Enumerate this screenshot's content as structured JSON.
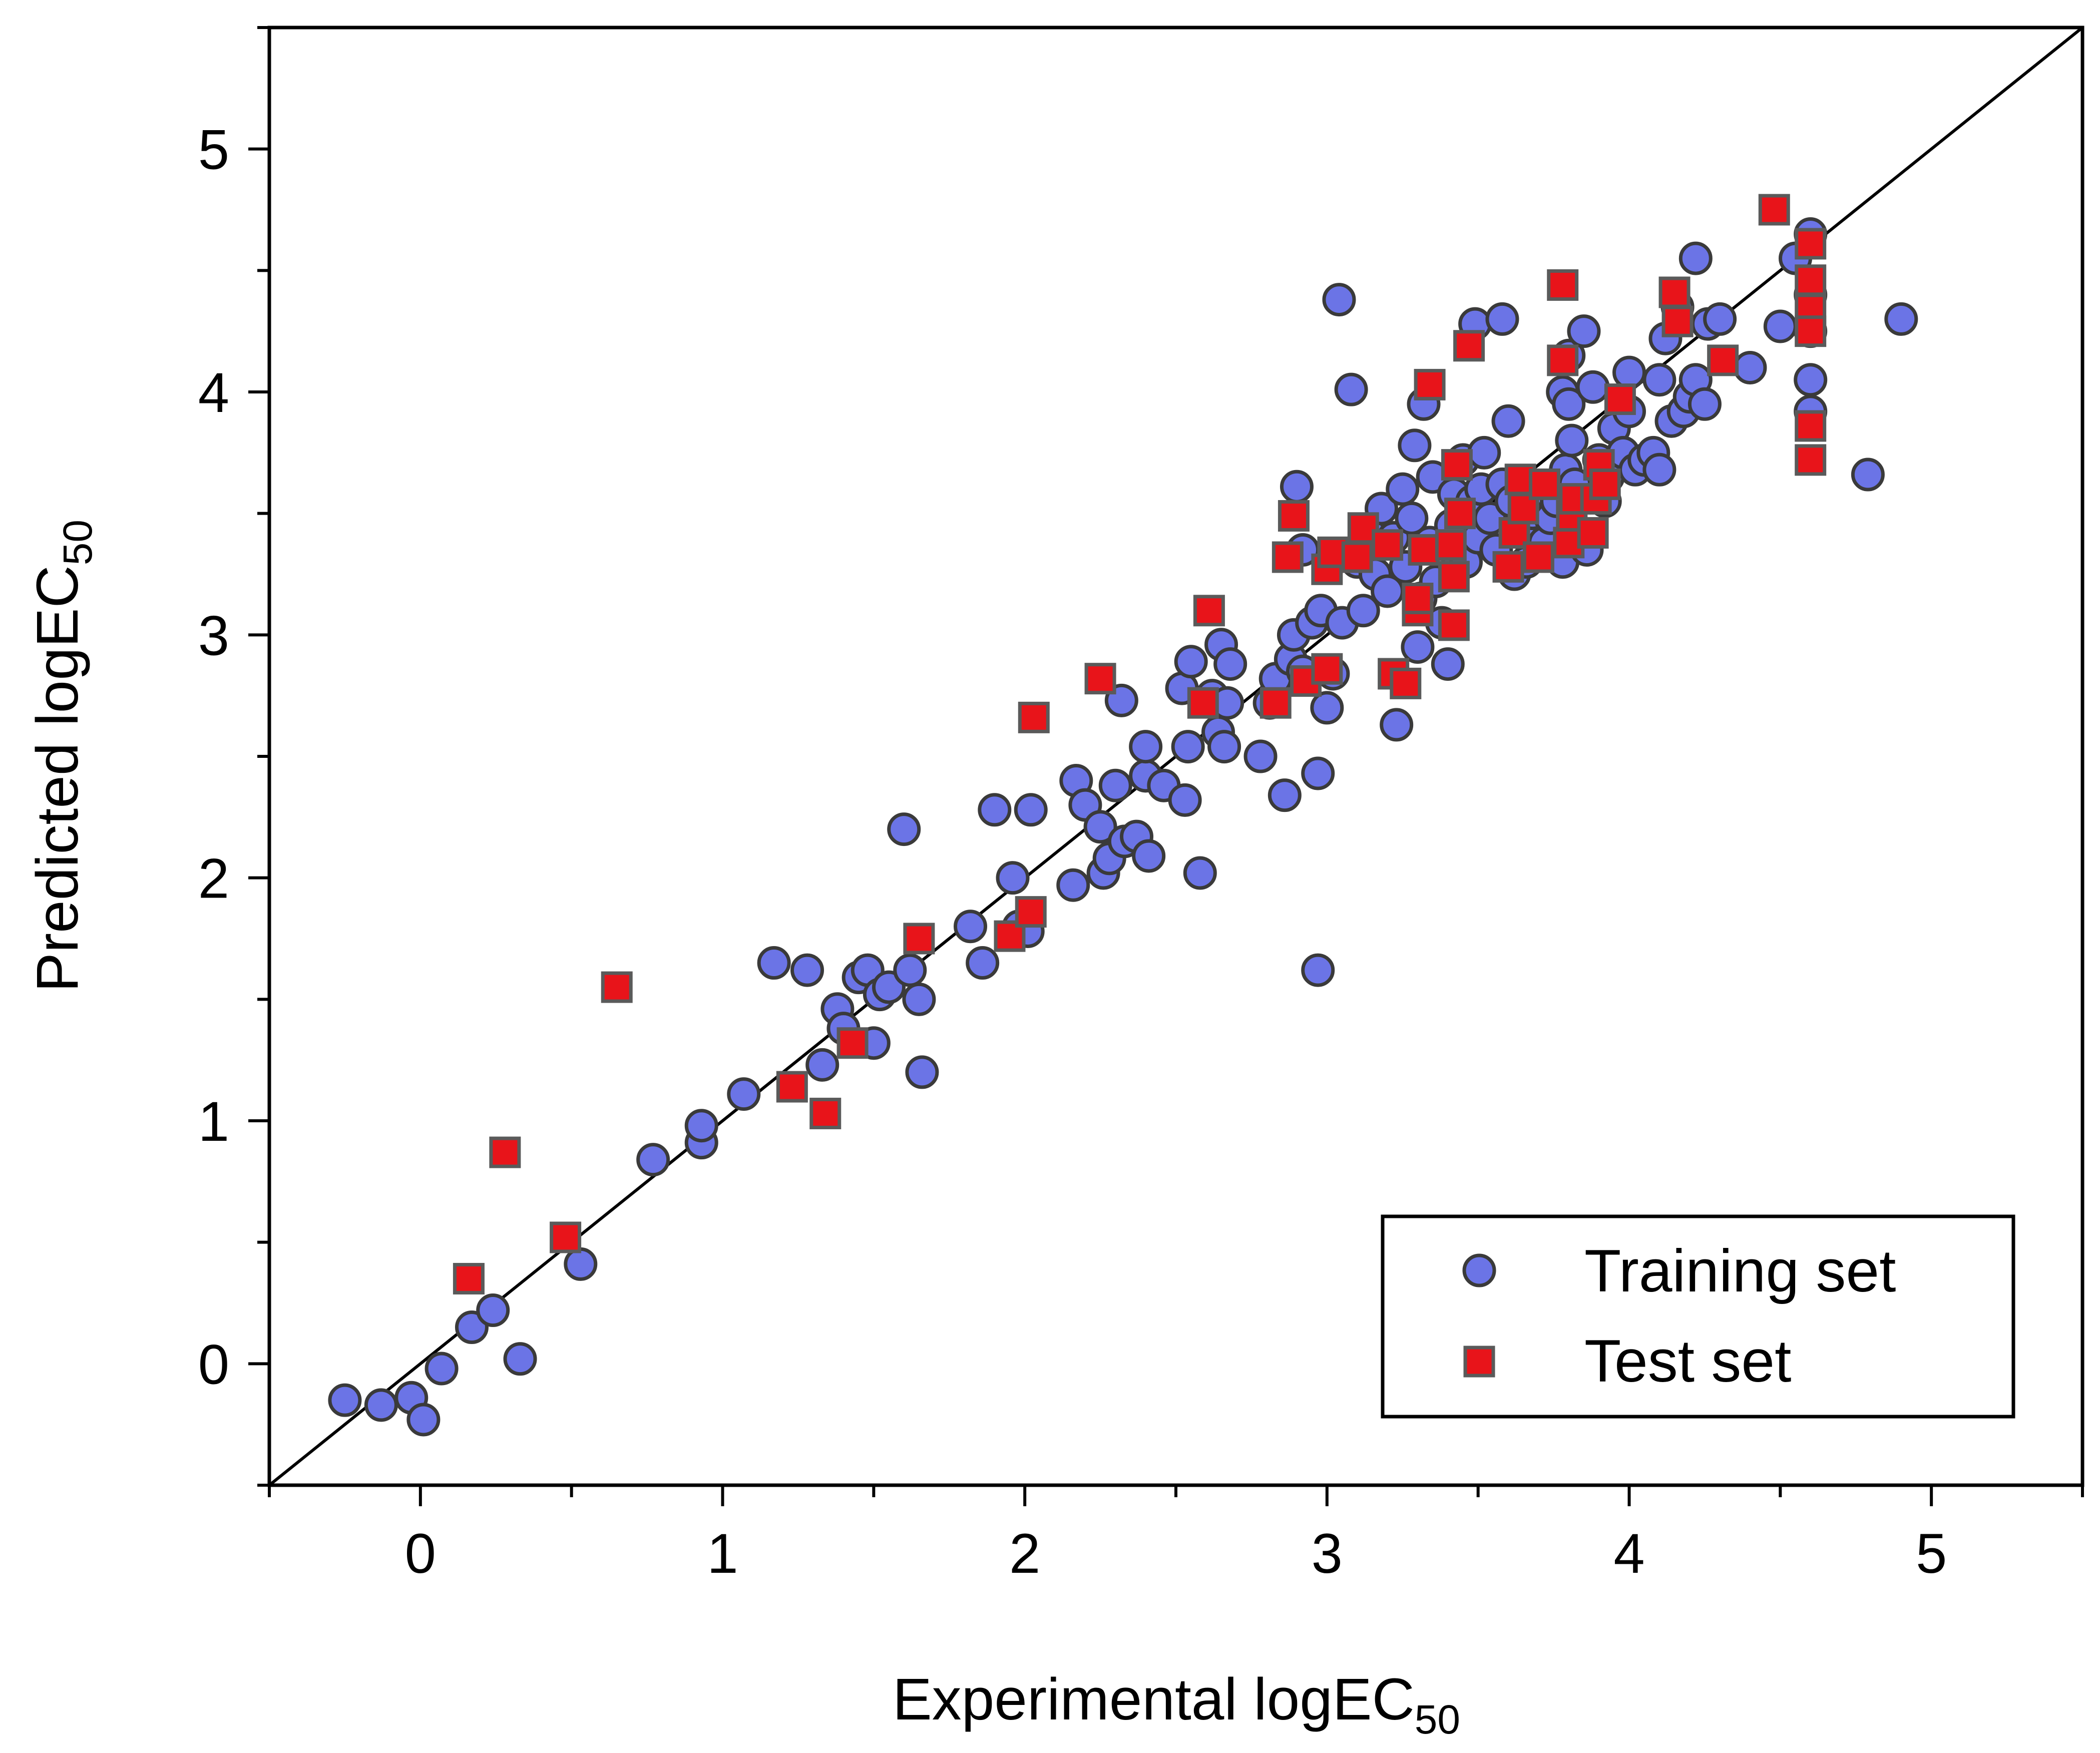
{
  "chart_data": {
    "type": "scatter",
    "title": "",
    "xlabel": "Experimental logEC",
    "xlabel_subscript": "50",
    "ylabel": "Predicted logEC",
    "ylabel_subscript": "50",
    "xlim": [
      -0.5,
      5.5
    ],
    "ylim": [
      -0.5,
      5.5
    ],
    "x_ticks": [
      "0",
      "1",
      "2",
      "3",
      "4",
      "5"
    ],
    "y_ticks": [
      "0",
      "1",
      "2",
      "3",
      "4",
      "5"
    ],
    "grid": false,
    "reference_line": "y = x",
    "legend_position": "bottom-right",
    "series": [
      {
        "name": "Training set",
        "marker": "circle",
        "color": "#6b74e6",
        "edge_color": "#3a3a3a",
        "points": [
          [
            -0.25,
            -0.15
          ],
          [
            -0.13,
            -0.17
          ],
          [
            -0.03,
            -0.14
          ],
          [
            0.01,
            -0.23
          ],
          [
            0.07,
            -0.02
          ],
          [
            0.17,
            0.15
          ],
          [
            0.24,
            0.22
          ],
          [
            0.33,
            0.02
          ],
          [
            0.53,
            0.41
          ],
          [
            0.77,
            0.84
          ],
          [
            0.93,
            0.91
          ],
          [
            0.93,
            0.98
          ],
          [
            1.07,
            1.11
          ],
          [
            1.17,
            1.65
          ],
          [
            1.28,
            1.62
          ],
          [
            1.33,
            1.23
          ],
          [
            1.38,
            1.46
          ],
          [
            1.4,
            1.38
          ],
          [
            1.45,
            1.59
          ],
          [
            1.48,
            1.62
          ],
          [
            1.5,
            1.32
          ],
          [
            1.52,
            1.52
          ],
          [
            1.55,
            1.55
          ],
          [
            1.6,
            2.2
          ],
          [
            1.62,
            1.62
          ],
          [
            1.65,
            1.5
          ],
          [
            1.66,
            1.2
          ],
          [
            1.82,
            1.8
          ],
          [
            1.86,
            1.65
          ],
          [
            1.9,
            2.28
          ],
          [
            1.96,
            2.0
          ],
          [
            1.98,
            1.8
          ],
          [
            2.01,
            1.78
          ],
          [
            2.02,
            2.28
          ],
          [
            2.16,
            1.97
          ],
          [
            2.17,
            2.4
          ],
          [
            2.2,
            2.3
          ],
          [
            2.25,
            2.21
          ],
          [
            2.26,
            2.02
          ],
          [
            2.28,
            2.08
          ],
          [
            2.3,
            2.38
          ],
          [
            2.32,
            2.73
          ],
          [
            2.33,
            2.15
          ],
          [
            2.37,
            2.17
          ],
          [
            2.4,
            2.42
          ],
          [
            2.4,
            2.54
          ],
          [
            2.41,
            2.09
          ],
          [
            2.46,
            2.38
          ],
          [
            2.52,
            2.78
          ],
          [
            2.53,
            2.32
          ],
          [
            2.54,
            2.54
          ],
          [
            2.55,
            2.89
          ],
          [
            2.58,
            2.02
          ],
          [
            2.62,
            2.75
          ],
          [
            2.64,
            2.6
          ],
          [
            2.65,
            2.96
          ],
          [
            2.66,
            2.54
          ],
          [
            2.67,
            2.72
          ],
          [
            2.68,
            2.88
          ],
          [
            2.78,
            2.5
          ],
          [
            2.81,
            2.72
          ],
          [
            2.83,
            2.82
          ],
          [
            2.86,
            2.34
          ],
          [
            2.88,
            2.9
          ],
          [
            2.89,
            3.0
          ],
          [
            2.9,
            3.61
          ],
          [
            2.92,
            3.35
          ],
          [
            2.92,
            2.85
          ],
          [
            2.95,
            3.05
          ],
          [
            2.97,
            2.43
          ],
          [
            2.97,
            1.62
          ],
          [
            2.98,
            3.1
          ],
          [
            3.0,
            2.7
          ],
          [
            3.02,
            2.84
          ],
          [
            3.04,
            4.38
          ],
          [
            3.05,
            3.05
          ],
          [
            3.08,
            4.01
          ],
          [
            3.1,
            3.3
          ],
          [
            3.12,
            3.1
          ],
          [
            3.14,
            3.42
          ],
          [
            3.16,
            3.25
          ],
          [
            3.18,
            3.52
          ],
          [
            3.2,
            3.18
          ],
          [
            3.22,
            3.4
          ],
          [
            3.23,
            2.63
          ],
          [
            3.25,
            3.6
          ],
          [
            3.26,
            3.28
          ],
          [
            3.28,
            3.48
          ],
          [
            3.29,
            3.78
          ],
          [
            3.3,
            2.95
          ],
          [
            3.31,
            3.15
          ],
          [
            3.32,
            3.95
          ],
          [
            3.34,
            3.38
          ],
          [
            3.35,
            3.65
          ],
          [
            3.36,
            3.22
          ],
          [
            3.38,
            3.05
          ],
          [
            3.4,
            2.88
          ],
          [
            3.41,
            3.45
          ],
          [
            3.42,
            3.58
          ],
          [
            3.43,
            3.28
          ],
          [
            3.45,
            3.72
          ],
          [
            3.46,
            3.3
          ],
          [
            3.48,
            3.55
          ],
          [
            3.49,
            4.28
          ],
          [
            3.5,
            3.4
          ],
          [
            3.51,
            3.6
          ],
          [
            3.52,
            3.75
          ],
          [
            3.54,
            3.48
          ],
          [
            3.56,
            3.35
          ],
          [
            3.58,
            3.62
          ],
          [
            3.58,
            4.3
          ],
          [
            3.6,
            3.88
          ],
          [
            3.61,
            3.55
          ],
          [
            3.62,
            3.25
          ],
          [
            3.64,
            3.42
          ],
          [
            3.66,
            3.3
          ],
          [
            3.68,
            3.5
          ],
          [
            3.7,
            3.6
          ],
          [
            3.72,
            3.38
          ],
          [
            3.74,
            3.48
          ],
          [
            3.76,
            3.55
          ],
          [
            3.78,
            4.0
          ],
          [
            3.78,
            3.3
          ],
          [
            3.79,
            3.68
          ],
          [
            3.8,
            3.95
          ],
          [
            3.8,
            4.15
          ],
          [
            3.81,
            3.8
          ],
          [
            3.82,
            3.62
          ],
          [
            3.84,
            3.42
          ],
          [
            3.85,
            4.25
          ],
          [
            3.86,
            3.35
          ],
          [
            3.88,
            4.02
          ],
          [
            3.9,
            3.72
          ],
          [
            3.92,
            3.55
          ],
          [
            3.93,
            3.65
          ],
          [
            3.95,
            3.85
          ],
          [
            3.98,
            3.75
          ],
          [
            4.0,
            4.08
          ],
          [
            4.0,
            3.92
          ],
          [
            4.02,
            3.68
          ],
          [
            4.05,
            3.72
          ],
          [
            4.08,
            3.75
          ],
          [
            4.1,
            3.68
          ],
          [
            4.1,
            4.05
          ],
          [
            4.12,
            4.22
          ],
          [
            4.14,
            3.88
          ],
          [
            4.16,
            4.35
          ],
          [
            4.18,
            3.92
          ],
          [
            4.2,
            3.98
          ],
          [
            4.22,
            4.55
          ],
          [
            4.22,
            4.05
          ],
          [
            4.25,
            3.95
          ],
          [
            4.26,
            4.28
          ],
          [
            4.3,
            4.3
          ],
          [
            4.4,
            4.1
          ],
          [
            4.5,
            4.27
          ],
          [
            4.55,
            4.55
          ],
          [
            4.6,
            4.65
          ],
          [
            4.6,
            4.4
          ],
          [
            4.6,
            4.25
          ],
          [
            4.6,
            4.05
          ],
          [
            4.6,
            3.92
          ],
          [
            4.79,
            3.66
          ],
          [
            4.9,
            4.3
          ]
        ]
      },
      {
        "name": "Test set",
        "marker": "square",
        "color": "#e8141a",
        "edge_color": "#5a5a5a",
        "points": [
          [
            0.16,
            0.35
          ],
          [
            0.28,
            0.87
          ],
          [
            0.48,
            0.52
          ],
          [
            0.65,
            1.55
          ],
          [
            1.23,
            1.14
          ],
          [
            1.34,
            1.03
          ],
          [
            1.43,
            1.32
          ],
          [
            1.65,
            1.75
          ],
          [
            1.95,
            1.76
          ],
          [
            2.02,
            1.86
          ],
          [
            2.03,
            2.66
          ],
          [
            2.25,
            2.82
          ],
          [
            2.59,
            2.72
          ],
          [
            2.61,
            3.1
          ],
          [
            2.83,
            2.72
          ],
          [
            2.87,
            3.32
          ],
          [
            2.89,
            3.49
          ],
          [
            2.93,
            2.81
          ],
          [
            3.0,
            2.86
          ],
          [
            3.0,
            3.27
          ],
          [
            3.02,
            3.34
          ],
          [
            3.1,
            3.32
          ],
          [
            3.12,
            3.44
          ],
          [
            3.2,
            3.37
          ],
          [
            3.22,
            2.84
          ],
          [
            3.26,
            2.8
          ],
          [
            3.3,
            3.1
          ],
          [
            3.3,
            3.15
          ],
          [
            3.32,
            3.35
          ],
          [
            3.34,
            4.03
          ],
          [
            3.41,
            3.37
          ],
          [
            3.42,
            3.24
          ],
          [
            3.42,
            3.04
          ],
          [
            3.43,
            3.7
          ],
          [
            3.44,
            3.5
          ],
          [
            3.47,
            4.19
          ],
          [
            3.6,
            3.28
          ],
          [
            3.62,
            3.42
          ],
          [
            3.64,
            3.64
          ],
          [
            3.65,
            3.52
          ],
          [
            3.7,
            3.32
          ],
          [
            3.72,
            3.62
          ],
          [
            3.78,
            4.44
          ],
          [
            3.78,
            4.13
          ],
          [
            3.8,
            3.38
          ],
          [
            3.81,
            3.49
          ],
          [
            3.82,
            3.56
          ],
          [
            3.88,
            3.42
          ],
          [
            3.89,
            3.56
          ],
          [
            3.9,
            3.7
          ],
          [
            3.92,
            3.62
          ],
          [
            3.97,
            3.97
          ],
          [
            4.15,
            4.41
          ],
          [
            4.16,
            4.29
          ],
          [
            4.31,
            4.13
          ],
          [
            4.48,
            4.75
          ],
          [
            4.6,
            4.61
          ],
          [
            4.6,
            4.46
          ],
          [
            4.6,
            4.34
          ],
          [
            4.6,
            4.25
          ],
          [
            4.6,
            3.86
          ],
          [
            4.6,
            3.72
          ]
        ]
      }
    ]
  }
}
